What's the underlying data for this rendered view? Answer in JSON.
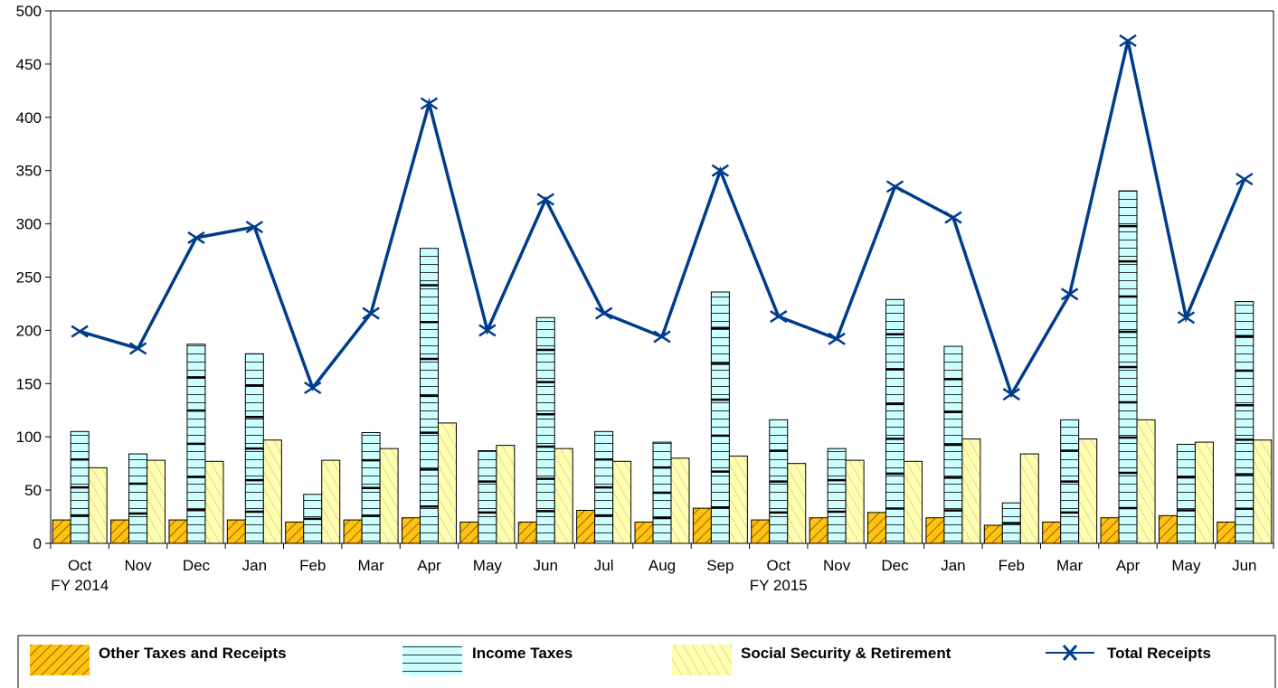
{
  "chart_data": {
    "type": "bar",
    "categories": [
      "Oct",
      "Nov",
      "Dec",
      "Jan",
      "Feb",
      "Mar",
      "Apr",
      "May",
      "Jun",
      "Jul",
      "Aug",
      "Sep",
      "Oct",
      "Nov",
      "Dec",
      "Jan",
      "Feb",
      "Mar",
      "Apr",
      "May",
      "Jun"
    ],
    "fiscal_year_labels": [
      {
        "category_index": 0,
        "label": "FY 2014"
      },
      {
        "category_index": 12,
        "label": "FY 2015"
      }
    ],
    "ylim": [
      0,
      500
    ],
    "yticks": [
      0,
      50,
      100,
      150,
      200,
      250,
      300,
      350,
      400,
      450,
      500
    ],
    "series": [
      {
        "name": "Other Taxes and Receipts",
        "type": "bar",
        "color": "#FFC20E",
        "values": [
          22,
          22,
          22,
          22,
          20,
          22,
          24,
          20,
          20,
          31,
          20,
          33,
          22,
          24,
          29,
          24,
          17,
          20,
          24,
          26,
          20
        ]
      },
      {
        "name": "Income Taxes",
        "type": "bar",
        "color": "#CCFFFF",
        "values": [
          105,
          84,
          187,
          178,
          46,
          104,
          277,
          87,
          212,
          105,
          95,
          236,
          116,
          89,
          229,
          185,
          38,
          116,
          331,
          93,
          227
        ]
      },
      {
        "name": "Social Security & Retirement",
        "type": "bar",
        "color": "#FFFFAA",
        "values": [
          71,
          78,
          77,
          97,
          78,
          89,
          113,
          92,
          89,
          77,
          80,
          82,
          75,
          78,
          77,
          98,
          84,
          98,
          116,
          95,
          97
        ]
      },
      {
        "name": "Total Receipts",
        "type": "line",
        "color": "#003C8C",
        "values": [
          199,
          183,
          287,
          297,
          146,
          216,
          413,
          200,
          323,
          216,
          194,
          350,
          213,
          192,
          335,
          306,
          140,
          234,
          472,
          212,
          342
        ]
      }
    ],
    "legend": {
      "placement": "bottom"
    },
    "grid": false
  }
}
